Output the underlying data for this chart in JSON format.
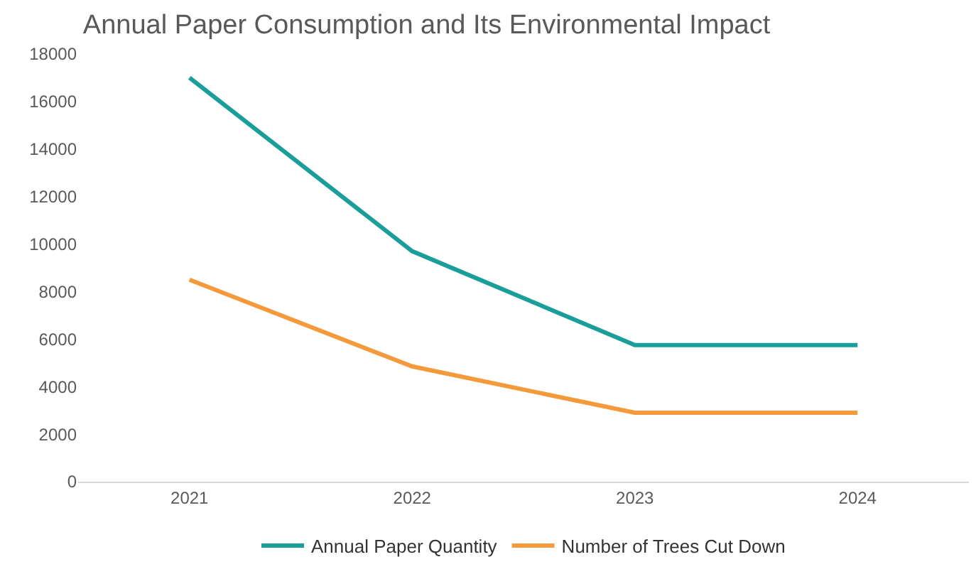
{
  "chart_data": {
    "type": "line",
    "title": "Annual Paper Consumption and Its Environmental Impact",
    "categories": [
      "2021",
      "2022",
      "2023",
      "2024"
    ],
    "series": [
      {
        "name": "Annual Paper Quantity",
        "color": "#1a9e9a",
        "values": [
          17000,
          9700,
          5750,
          5750
        ]
      },
      {
        "name": "Number of Trees Cut Down",
        "color": "#f59a3c",
        "values": [
          8500,
          4850,
          2900,
          2900
        ]
      }
    ],
    "ylim": [
      0,
      18000
    ],
    "yticks": [
      0,
      2000,
      4000,
      6000,
      8000,
      10000,
      12000,
      14000,
      16000,
      18000
    ],
    "legend": "bottom",
    "marker": "none",
    "line_style": "solid"
  }
}
